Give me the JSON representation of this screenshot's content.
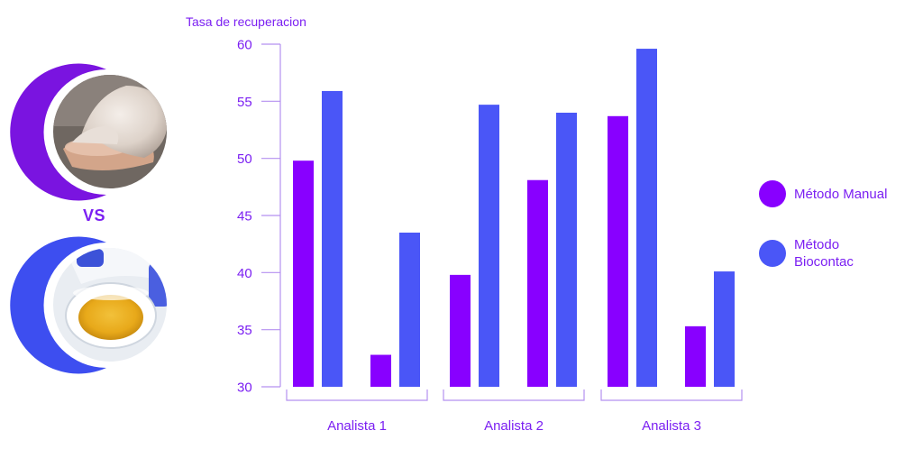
{
  "vs_label": "VS",
  "colors": {
    "manual": "#8800ff",
    "biocontac": "#4a56f7",
    "text": "#7b1ff2",
    "axis": "#b591f0"
  },
  "images": {
    "top": "gloved hand holding a petri dish",
    "bottom": "contact sampler with yellow agar plate"
  },
  "chart_data": {
    "type": "bar",
    "ylabel": "Tasa de recuperacion",
    "ylim": [
      30,
      60
    ],
    "yticks": [
      30,
      35,
      40,
      45,
      50,
      55,
      60
    ],
    "groups": [
      {
        "label": "Analista 1",
        "manual": [
          49.8,
          32.8
        ],
        "biocontac": [
          55.9,
          43.5
        ]
      },
      {
        "label": "Analista 2",
        "manual": [
          39.8,
          48.1
        ],
        "biocontac": [
          54.7,
          54.0
        ]
      },
      {
        "label": "Analista 3",
        "manual": [
          53.7,
          35.3
        ],
        "biocontac": [
          59.6,
          40.1
        ]
      }
    ],
    "series": [
      {
        "name": "Método Manual",
        "key": "manual"
      },
      {
        "name": "Método Biocontac",
        "key": "biocontac"
      }
    ]
  },
  "legend": [
    {
      "label": "Método Manual",
      "key": "manual"
    },
    {
      "label": "Método\nBiocontac",
      "key": "biocontac"
    }
  ]
}
